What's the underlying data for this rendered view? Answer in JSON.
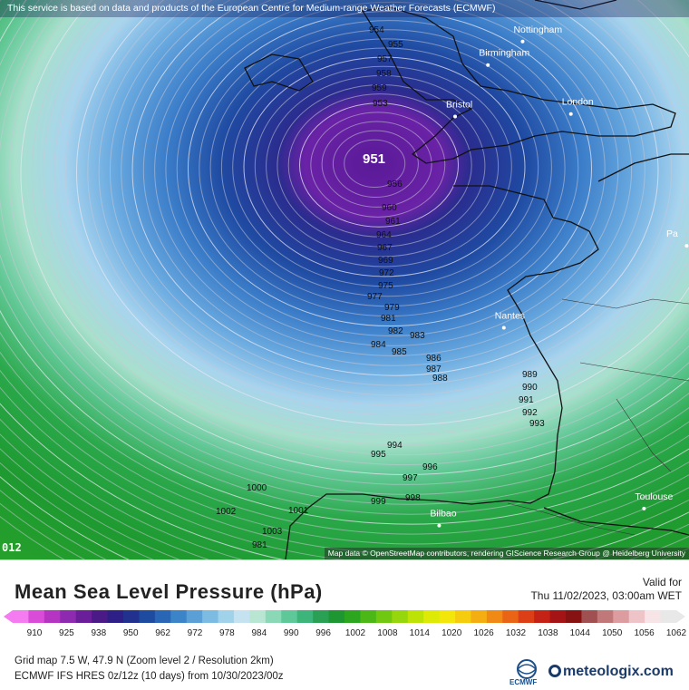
{
  "top_notice": "This service is based on data and products of the European Centre for Medium-range Weather Forecasts (ECMWF)",
  "attribution": "Map data © OpenStreetMap contributors, rendering GIScience Research Group @ Heidelberg University",
  "corner_step": "012",
  "title": "Mean Sea Level Pressure (hPa)",
  "valid_label": "Valid for",
  "valid_time": "Thu 11/02/2023, 03:00am WET",
  "info_line1": "Grid map 7.5 W, 47.9 N (Zoom level 2 / Resolution 2km)",
  "info_line2": "ECMWF IFS HRES 0z/12z (10 days) from 10/30/2023/00z",
  "ecmwf_label": "ECMWF",
  "meteologix_label": "meteologix.com",
  "low_center": {
    "label": "951",
    "value": 951
  },
  "cities": [
    {
      "name": "Nottingham",
      "lon": -1.15,
      "lat": 52.95
    },
    {
      "name": "Birmingham",
      "lon": -1.89,
      "lat": 52.48
    },
    {
      "name": "Bristol",
      "lon": -2.59,
      "lat": 51.45
    },
    {
      "name": "London",
      "lon": -0.12,
      "lat": 51.5
    },
    {
      "name": "Nantes",
      "lon": -1.55,
      "lat": 47.22
    },
    {
      "name": "Bilbao",
      "lon": -2.93,
      "lat": 43.26
    },
    {
      "name": "Toulouse",
      "lon": 1.44,
      "lat": 43.6
    },
    {
      "name": "Pa",
      "lon": 2.35,
      "lat": 48.86
    }
  ],
  "isobar_labels": [
    "954",
    "955",
    "957",
    "958",
    "959",
    "953",
    "956",
    "960",
    "961",
    "964",
    "967",
    "969",
    "972",
    "975",
    "977",
    "979",
    "981",
    "982",
    "983",
    "984",
    "985",
    "986",
    "987",
    "988",
    "989",
    "990",
    "991",
    "992",
    "993",
    "994",
    "995",
    "996",
    "997",
    "998",
    "999",
    "1000",
    "1001",
    "1002",
    "1003",
    "981"
  ],
  "scale": {
    "ticks": [
      "910",
      "925",
      "938",
      "950",
      "962",
      "972",
      "978",
      "984",
      "990",
      "996",
      "1002",
      "1008",
      "1014",
      "1020",
      "1026",
      "1032",
      "1038",
      "1044",
      "1050",
      "1056",
      "1062"
    ],
    "colors": [
      "#f47cf0",
      "#d94cd8",
      "#b534c2",
      "#8e2ab0",
      "#6a1e9a",
      "#4a1a86",
      "#2e1f86",
      "#22318e",
      "#1e4aa0",
      "#2a66b6",
      "#3c84c8",
      "#5aa0d6",
      "#7cbce2",
      "#a0d2ea",
      "#c4e2f0",
      "#b8e6d2",
      "#8ad8b6",
      "#5ec898",
      "#3cb47a",
      "#2aa054",
      "#1e9632",
      "#2ca61e",
      "#4cb818",
      "#70c810",
      "#96d60c",
      "#bce206",
      "#dcea06",
      "#f2e60a",
      "#f6cc0e",
      "#f4ae12",
      "#f08a14",
      "#ea6416",
      "#dc3e16",
      "#c42214",
      "#a41414",
      "#861212",
      "#a05050",
      "#c07878",
      "#dc9ca0",
      "#eec4c8",
      "#f6e4e6",
      "#e8e8e8"
    ]
  }
}
